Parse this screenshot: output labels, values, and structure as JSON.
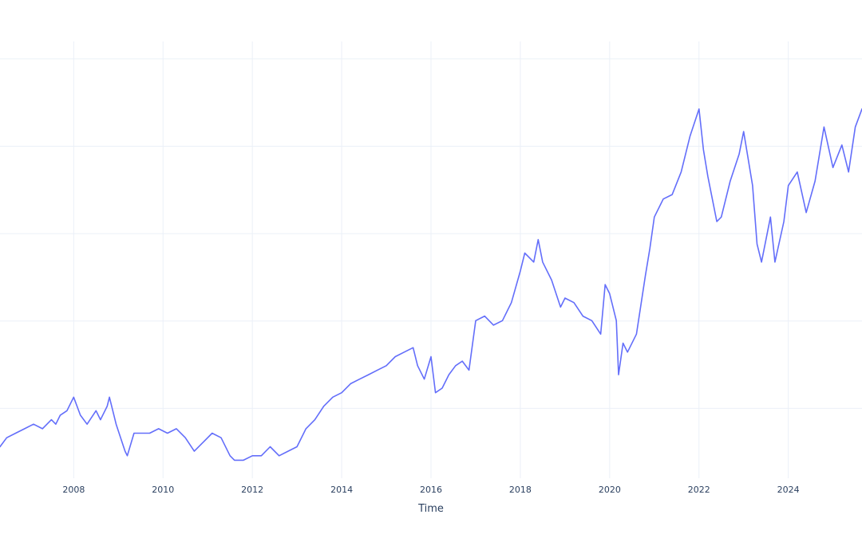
{
  "chart_data": {
    "type": "line",
    "title": "",
    "xlabel": "Time",
    "ylabel": "",
    "xlim": [
      2006.35,
      2025.65
    ],
    "ylim": [
      0.1,
      1.07
    ],
    "x_ticks": [
      2008,
      2010,
      2012,
      2014,
      2016,
      2018,
      2020,
      2022,
      2024
    ],
    "x_tick_labels": [
      "2008",
      "2010",
      "2012",
      "2014",
      "2016",
      "2018",
      "2020",
      "2022",
      "2024"
    ],
    "grid": true,
    "legend": "none",
    "colors": {
      "series": "#636efa",
      "grid": "#ebf0f8",
      "text": "#2a3f5f",
      "background": "#ffffff"
    },
    "series": [
      {
        "x": [
          2006.35,
          2006.5,
          2006.7,
          2006.9,
          2007.1,
          2007.3,
          2007.5,
          2007.6,
          2007.7,
          2007.85,
          2008.0,
          2008.15,
          2008.3,
          2008.5,
          2008.6,
          2008.75,
          2008.8,
          2008.95,
          2009.05,
          2009.15,
          2009.2,
          2009.35,
          2009.5,
          2009.7,
          2009.9,
          2010.1,
          2010.3,
          2010.5,
          2010.7,
          2010.9,
          2011.1,
          2011.3,
          2011.5,
          2011.6,
          2011.8,
          2012.0,
          2012.2,
          2012.4,
          2012.6,
          2012.8,
          2013.0,
          2013.2,
          2013.4,
          2013.6,
          2013.8,
          2014.0,
          2014.2,
          2014.4,
          2014.6,
          2014.8,
          2015.0,
          2015.2,
          2015.4,
          2015.6,
          2015.7,
          2015.85,
          2016.0,
          2016.1,
          2016.25,
          2016.4,
          2016.55,
          2016.7,
          2016.85,
          2017.0,
          2017.2,
          2017.4,
          2017.6,
          2017.8,
          2018.0,
          2018.1,
          2018.3,
          2018.4,
          2018.5,
          2018.7,
          2018.9,
          2019.0,
          2019.2,
          2019.4,
          2019.6,
          2019.8,
          2019.9,
          2020.0,
          2020.15,
          2020.2,
          2020.3,
          2020.4,
          2020.6,
          2020.8,
          2020.9,
          2021.0,
          2021.2,
          2021.4,
          2021.6,
          2021.8,
          2022.0,
          2022.1,
          2022.2,
          2022.4,
          2022.5,
          2022.7,
          2022.9,
          2023.0,
          2023.2,
          2023.3,
          2023.4,
          2023.6,
          2023.7,
          2023.9,
          2024.0,
          2024.2,
          2024.4,
          2024.6,
          2024.8,
          2025.0,
          2025.2,
          2025.35,
          2025.5,
          2025.65
        ],
        "y": [
          0.17,
          0.19,
          0.2,
          0.21,
          0.22,
          0.21,
          0.23,
          0.22,
          0.24,
          0.25,
          0.28,
          0.24,
          0.22,
          0.25,
          0.23,
          0.26,
          0.28,
          0.22,
          0.19,
          0.16,
          0.15,
          0.2,
          0.2,
          0.2,
          0.21,
          0.2,
          0.21,
          0.19,
          0.16,
          0.18,
          0.2,
          0.19,
          0.15,
          0.14,
          0.14,
          0.15,
          0.15,
          0.17,
          0.15,
          0.16,
          0.17,
          0.21,
          0.23,
          0.26,
          0.28,
          0.29,
          0.31,
          0.32,
          0.33,
          0.34,
          0.35,
          0.37,
          0.38,
          0.39,
          0.35,
          0.32,
          0.37,
          0.29,
          0.3,
          0.33,
          0.35,
          0.36,
          0.34,
          0.45,
          0.46,
          0.44,
          0.45,
          0.49,
          0.56,
          0.6,
          0.58,
          0.63,
          0.58,
          0.54,
          0.48,
          0.5,
          0.49,
          0.46,
          0.45,
          0.42,
          0.53,
          0.51,
          0.45,
          0.33,
          0.4,
          0.38,
          0.42,
          0.55,
          0.61,
          0.68,
          0.72,
          0.73,
          0.78,
          0.86,
          0.92,
          0.83,
          0.77,
          0.67,
          0.68,
          0.76,
          0.82,
          0.87,
          0.75,
          0.62,
          0.58,
          0.68,
          0.58,
          0.67,
          0.75,
          0.78,
          0.69,
          0.76,
          0.88,
          0.79,
          0.84,
          0.78,
          0.88,
          0.92
        ]
      }
    ]
  }
}
